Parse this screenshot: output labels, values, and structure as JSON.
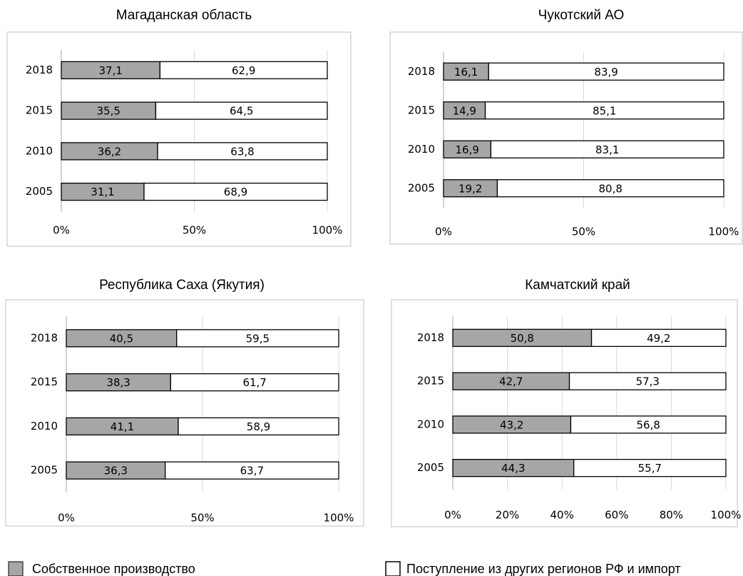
{
  "chart_data": [
    {
      "type": "stacked_bar_horizontal",
      "title": "Магаданская область",
      "categories": [
        "2018",
        "2015",
        "2010",
        "2005"
      ],
      "series": [
        {
          "name": "Собственное производство",
          "color": "#a6a6a6",
          "values": [
            37.1,
            35.5,
            36.2,
            31.1
          ],
          "value_labels": [
            "37,1",
            "35,5",
            "36,2",
            "31,1"
          ]
        },
        {
          "name": "Поступление из других регионов РФ и импорт",
          "color": "#ffffff",
          "values": [
            62.9,
            64.5,
            63.8,
            68.9
          ],
          "value_labels": [
            "62,9",
            "64,5",
            "63,8",
            "68,9"
          ]
        }
      ],
      "xlim": [
        0,
        100
      ],
      "xticks": [
        {
          "value": 0,
          "label": "0%"
        },
        {
          "value": 50,
          "label": "50%"
        },
        {
          "value": 100,
          "label": "100%"
        }
      ],
      "grid": true
    },
    {
      "type": "stacked_bar_horizontal",
      "title": "Чукотский АО",
      "categories": [
        "2018",
        "2015",
        "2010",
        "2005"
      ],
      "series": [
        {
          "color": "#a6a6a6",
          "values": [
            16.1,
            14.9,
            16.9,
            19.2
          ],
          "value_labels": [
            "16,1",
            "14,9",
            "16,9",
            "19,2"
          ]
        },
        {
          "color": "#ffffff",
          "values": [
            83.9,
            85.1,
            83.1,
            80.8
          ],
          "value_labels": [
            "83,9",
            "85,1",
            "83,1",
            "80,8"
          ]
        }
      ],
      "xlim": [
        0,
        100
      ],
      "xticks": [
        {
          "value": 0,
          "label": "0%"
        },
        {
          "value": 50,
          "label": "50%"
        },
        {
          "value": 100,
          "label": "100%"
        }
      ],
      "grid": true
    },
    {
      "type": "stacked_bar_horizontal",
      "title": "Республика Саха (Якутия)",
      "categories": [
        "2018",
        "2015",
        "2010",
        "2005"
      ],
      "series": [
        {
          "color": "#a6a6a6",
          "values": [
            40.5,
            38.3,
            41.1,
            36.3
          ],
          "value_labels": [
            "40,5",
            "38,3",
            "41,1",
            "36,3"
          ]
        },
        {
          "color": "#ffffff",
          "values": [
            59.5,
            61.7,
            58.9,
            63.7
          ],
          "value_labels": [
            "59,5",
            "61,7",
            "58,9",
            "63,7"
          ]
        }
      ],
      "xlim": [
        0,
        100
      ],
      "xticks": [
        {
          "value": 0,
          "label": "0%"
        },
        {
          "value": 50,
          "label": "50%"
        },
        {
          "value": 100,
          "label": "100%"
        }
      ],
      "grid": true
    },
    {
      "type": "stacked_bar_horizontal",
      "title": "Камчатский край",
      "categories": [
        "2018",
        "2015",
        "2010",
        "2005"
      ],
      "series": [
        {
          "color": "#a6a6a6",
          "values": [
            50.8,
            42.7,
            43.2,
            44.3
          ],
          "value_labels": [
            "50,8",
            "42,7",
            "43,2",
            "44,3"
          ]
        },
        {
          "color": "#ffffff",
          "values": [
            49.2,
            57.3,
            56.8,
            55.7
          ],
          "value_labels": [
            "49,2",
            "57,3",
            "56,8",
            "55,7"
          ]
        }
      ],
      "xlim": [
        0,
        100
      ],
      "xticks": [
        {
          "value": 0,
          "label": "0%"
        },
        {
          "value": 20,
          "label": "20%"
        },
        {
          "value": 40,
          "label": "40%"
        },
        {
          "value": 60,
          "label": "60%"
        },
        {
          "value": 80,
          "label": "80%"
        },
        {
          "value": 100,
          "label": "100%"
        }
      ],
      "grid": true
    }
  ]
}
